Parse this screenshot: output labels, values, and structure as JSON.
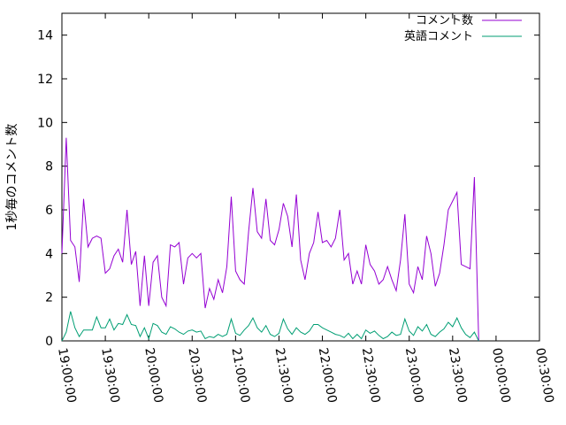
{
  "chart_data": {
    "type": "line",
    "title": "",
    "ylabel": "1秒毎のコメント数",
    "xlabel": "",
    "xlim": [
      "19:00:00",
      "00:30:00"
    ],
    "ylim": [
      0,
      15
    ],
    "x_ticks": [
      "19:00:00",
      "19:30:00",
      "20:00:00",
      "20:30:00",
      "21:00:00",
      "21:30:00",
      "22:00:00",
      "22:30:00",
      "23:00:00",
      "23:30:00",
      "00:00:00",
      "00:30:00"
    ],
    "y_ticks": [
      "0",
      "2",
      "4",
      "6",
      "8",
      "10",
      "12",
      "14"
    ],
    "legend_position": "top-right",
    "x_step_seconds": 180,
    "x_start": "19:00:00",
    "series": [
      {
        "name": "コメント数",
        "color": "#9400d3",
        "values": [
          4.0,
          9.3,
          4.6,
          4.3,
          2.7,
          6.5,
          4.3,
          4.7,
          4.8,
          4.7,
          3.1,
          3.3,
          3.9,
          4.2,
          3.6,
          6.0,
          3.5,
          4.1,
          1.6,
          3.9,
          1.6,
          3.6,
          3.9,
          2.0,
          1.6,
          4.4,
          4.3,
          4.5,
          2.6,
          3.8,
          4.0,
          3.8,
          4.0,
          1.5,
          2.4,
          1.9,
          2.8,
          2.2,
          3.4,
          6.6,
          3.2,
          2.8,
          2.6,
          5.0,
          7.0,
          5.0,
          4.7,
          6.5,
          4.6,
          4.4,
          5.1,
          6.3,
          5.7,
          4.3,
          6.7,
          3.7,
          2.8,
          4.0,
          4.5,
          5.9,
          4.5,
          4.6,
          4.3,
          4.7,
          6.0,
          3.7,
          4.0,
          2.6,
          3.2,
          2.6,
          4.4,
          3.5,
          3.2,
          2.6,
          2.8,
          3.4,
          2.8,
          2.3,
          3.7,
          5.8,
          2.6,
          2.2,
          3.4,
          2.8,
          4.8,
          4.0,
          2.5,
          3.1,
          4.4,
          6.0,
          6.4,
          6.8,
          3.5,
          3.4,
          3.3,
          7.5,
          0.0
        ]
      },
      {
        "name": "英語コメント",
        "color": "#009e73",
        "values": [
          0.0,
          0.4,
          1.35,
          0.6,
          0.2,
          0.5,
          0.5,
          0.5,
          1.1,
          0.6,
          0.6,
          1.0,
          0.5,
          0.8,
          0.75,
          1.2,
          0.75,
          0.7,
          0.2,
          0.6,
          0.1,
          0.8,
          0.7,
          0.4,
          0.3,
          0.65,
          0.55,
          0.4,
          0.3,
          0.45,
          0.5,
          0.4,
          0.45,
          0.1,
          0.2,
          0.15,
          0.3,
          0.2,
          0.3,
          1.0,
          0.35,
          0.25,
          0.5,
          0.7,
          1.05,
          0.6,
          0.4,
          0.7,
          0.3,
          0.2,
          0.35,
          1.0,
          0.55,
          0.3,
          0.6,
          0.4,
          0.3,
          0.45,
          0.75,
          0.75,
          0.6,
          0.5,
          0.4,
          0.3,
          0.25,
          0.15,
          0.35,
          0.1,
          0.3,
          0.1,
          0.5,
          0.35,
          0.45,
          0.25,
          0.1,
          0.2,
          0.4,
          0.25,
          0.3,
          1.0,
          0.45,
          0.25,
          0.65,
          0.45,
          0.75,
          0.3,
          0.2,
          0.4,
          0.55,
          0.85,
          0.65,
          1.05,
          0.6,
          0.3,
          0.15,
          0.4,
          0.0
        ]
      }
    ]
  }
}
